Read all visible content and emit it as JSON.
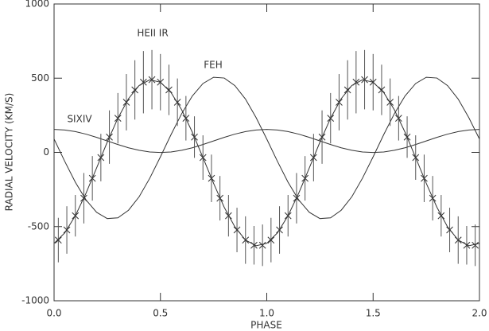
{
  "chart_data": {
    "type": "line",
    "xlabel": "PHASE",
    "ylabel": "RADIAL VELOCITY (KM/S)",
    "xlim": [
      0,
      2
    ],
    "ylim": [
      -1000,
      1000
    ],
    "xticks": [
      {
        "value": 0,
        "label": "0.0"
      },
      {
        "value": 0.5,
        "label": "0.5"
      },
      {
        "value": 1,
        "label": "1.0"
      },
      {
        "value": 1.5,
        "label": "1.5"
      },
      {
        "value": 2,
        "label": "2.0"
      }
    ],
    "yticks": [
      -1000,
      -500,
      0,
      500,
      1000
    ],
    "color": "#333333",
    "x": [
      0,
      0.05,
      0.1,
      0.15,
      0.2,
      0.25,
      0.3,
      0.35,
      0.4,
      0.45,
      0.5,
      0.55,
      0.6,
      0.65,
      0.7,
      0.75,
      0.8,
      0.85,
      0.9,
      0.95,
      1,
      1.05,
      1.1,
      1.15,
      1.2,
      1.25,
      1.3,
      1.35,
      1.4,
      1.45,
      1.5,
      1.55,
      1.6,
      1.65,
      1.7,
      1.75,
      1.8,
      1.85,
      1.9,
      1.95,
      2
    ],
    "series": [
      {
        "name": "HEII IR",
        "values": [
          -613,
          -543,
          -427,
          -276,
          -105,
          69,
          230,
          362,
          451,
          489,
          473,
          403,
          287,
          136,
          -35,
          -209,
          -370,
          -502,
          -591,
          -629,
          -613,
          -543,
          -427,
          -276,
          -105,
          69,
          230,
          362,
          451,
          489,
          473,
          403,
          287,
          136,
          -35,
          -209,
          -370,
          -502,
          -591,
          -629,
          -613
        ]
      },
      {
        "name": "FEH",
        "values": [
          90,
          -60,
          -201,
          -320,
          -404,
          -446,
          -441,
          -390,
          -299,
          -174,
          -30,
          120,
          261,
          380,
          464,
          506,
          501,
          450,
          359,
          234,
          90,
          -60,
          -201,
          -320,
          -404,
          -446,
          -441,
          -390,
          -299,
          -174,
          -30,
          120,
          261,
          380,
          464,
          506,
          501,
          450,
          359,
          234,
          90
        ]
      },
      {
        "name": "SIXIV",
        "values": [
          155,
          151,
          140,
          123,
          101,
          77,
          53,
          31,
          14,
          3,
          -1,
          3,
          14,
          31,
          53,
          77,
          101,
          123,
          140,
          151,
          155,
          151,
          140,
          123,
          101,
          77,
          53,
          31,
          14,
          3,
          -1,
          3,
          14,
          31,
          53,
          77,
          101,
          123,
          140,
          151,
          155
        ]
      }
    ],
    "points": {
      "x": [
        0.02,
        0.06,
        0.1,
        0.14,
        0.18,
        0.22,
        0.26,
        0.3,
        0.34,
        0.38,
        0.42,
        0.46,
        0.5,
        0.54,
        0.58,
        0.62,
        0.66,
        0.7,
        0.74,
        0.78,
        0.82,
        0.86,
        0.9,
        0.94,
        0.98,
        1.02,
        1.06,
        1.1,
        1.14,
        1.18,
        1.22,
        1.26,
        1.3,
        1.34,
        1.38,
        1.42,
        1.46,
        1.5,
        1.54,
        1.58,
        1.62,
        1.66,
        1.7,
        1.74,
        1.78,
        1.82,
        1.86,
        1.9,
        1.94,
        1.98
      ],
      "values": [
        -591,
        -523,
        -427,
        -309,
        -175,
        -35,
        103,
        230,
        338,
        421,
        473,
        490,
        473,
        421,
        338,
        230,
        103,
        -35,
        -175,
        -309,
        -427,
        -523,
        -591,
        -626,
        -626,
        -591,
        -523,
        -427,
        -309,
        -175,
        -35,
        103,
        230,
        338,
        421,
        473,
        490,
        473,
        421,
        338,
        230,
        103,
        -35,
        -175,
        -309,
        -427,
        -523,
        -591,
        -626,
        -626
      ],
      "errors": [
        150,
        160,
        140,
        170,
        150,
        160,
        180,
        170,
        190,
        200,
        210,
        200,
        190,
        170,
        160,
        150,
        140,
        150,
        160,
        150,
        140,
        150,
        160,
        130,
        140,
        150,
        160,
        140,
        170,
        150,
        160,
        180,
        170,
        190,
        200,
        210,
        200,
        190,
        170,
        160,
        150,
        140,
        150,
        160,
        150,
        140,
        150,
        160,
        130,
        140
      ]
    }
  }
}
